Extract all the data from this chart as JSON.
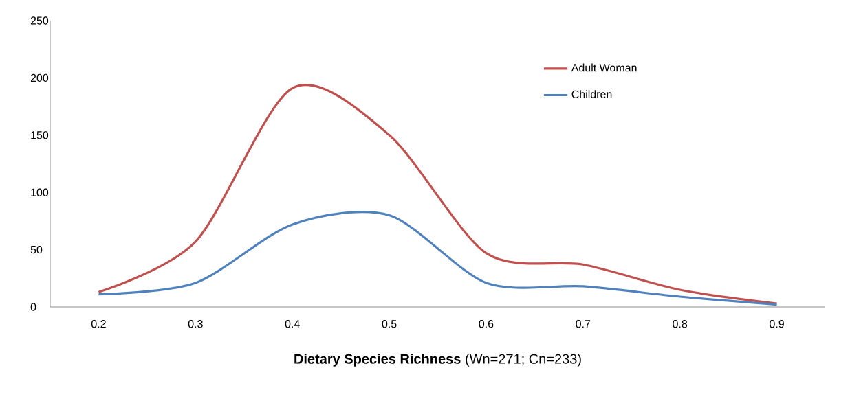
{
  "chart_data": {
    "type": "line",
    "xlabel": "**Dietary Species Richness** (Wn=271; Cn=233)",
    "categories": [
      "0.2",
      "0.3",
      "0.4",
      "0.5",
      "0.6",
      "0.7",
      "0.8",
      "0.9"
    ],
    "series": [
      {
        "name": "Adult Woman",
        "color": "#c0504d",
        "values": [
          13,
          57,
          191,
          150,
          47,
          37,
          15,
          3
        ]
      },
      {
        "name": "Children",
        "color": "#4f81bd",
        "values": [
          11,
          21,
          72,
          80,
          21,
          18,
          9,
          2
        ]
      }
    ],
    "ylim": [
      0,
      250
    ],
    "yticks": [
      0,
      50,
      100,
      150,
      200,
      250
    ],
    "legend": "top right",
    "grid": false
  }
}
